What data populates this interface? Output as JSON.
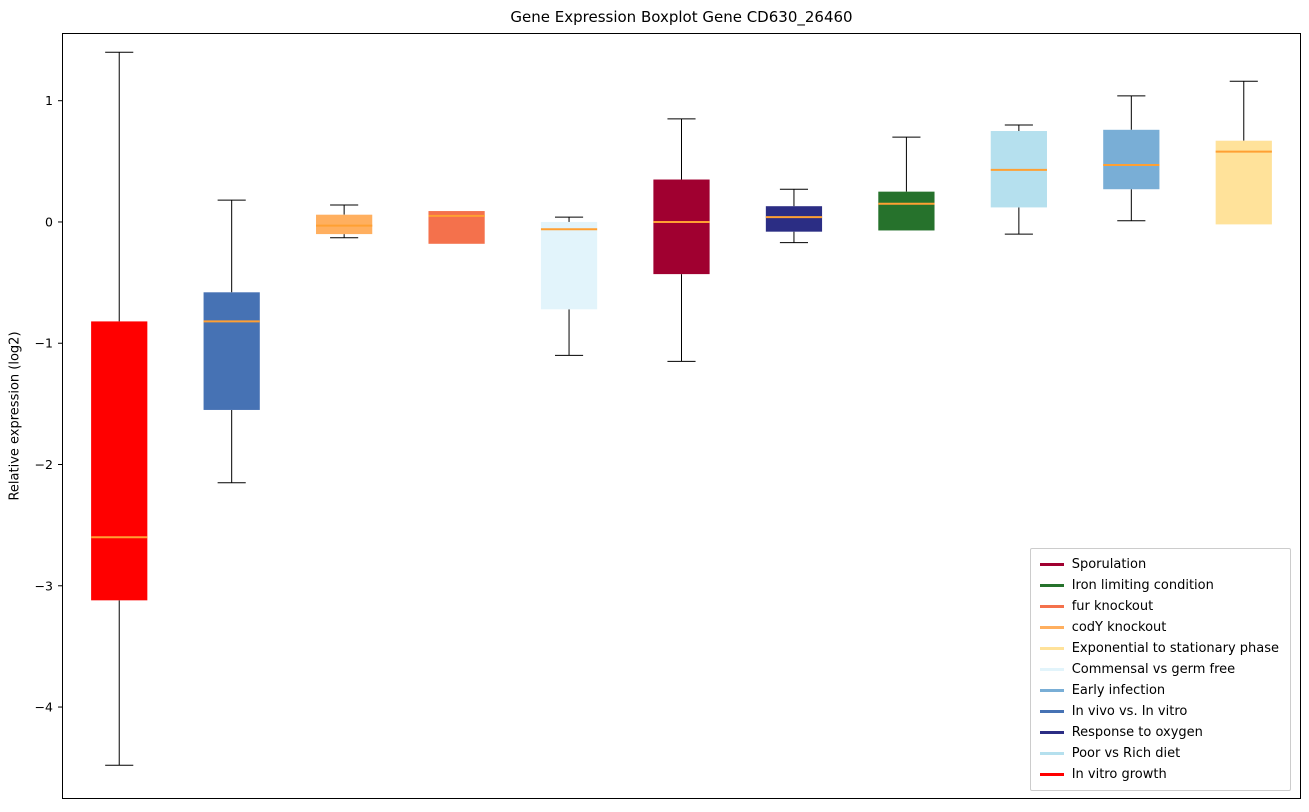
{
  "chart_data": {
    "type": "boxplot",
    "title": "Gene Expression Boxplot Gene CD630_26460",
    "ylabel": "Relative expression (log2)",
    "ylim": [
      -4.75,
      1.55
    ],
    "yticks": [
      1,
      0,
      -1,
      -2,
      -3,
      -4
    ],
    "ytick_labels": [
      "1",
      "0",
      "−1",
      "−2",
      "−3",
      "−4"
    ],
    "grid": false,
    "median_color": "#ffa033",
    "whisker_color": "#000000",
    "boxes": [
      {
        "name": "In vitro growth",
        "color": "#ff0000",
        "whisker_low": -4.48,
        "q1": -3.12,
        "median": -2.6,
        "q3": -0.82,
        "whisker_high": 1.4
      },
      {
        "name": "In vivo vs. In vitro",
        "color": "#4672b4",
        "whisker_low": -2.15,
        "q1": -1.55,
        "median": -0.82,
        "q3": -0.58,
        "whisker_high": 0.18
      },
      {
        "name": "codY knockout",
        "color": "#ffaf5f",
        "whisker_low": -0.13,
        "q1": -0.1,
        "median": -0.03,
        "q3": 0.06,
        "whisker_high": 0.14
      },
      {
        "name": "fur knockout",
        "color": "#f4714c",
        "whisker_low": -0.18,
        "q1": -0.18,
        "median": 0.05,
        "q3": 0.09,
        "whisker_high": 0.09
      },
      {
        "name": "Commensal vs germ free",
        "color": "#e2f4fb",
        "whisker_low": -1.1,
        "q1": -0.72,
        "median": -0.06,
        "q3": 0.0,
        "whisker_high": 0.04
      },
      {
        "name": "Sporulation",
        "color": "#a00030",
        "whisker_low": -1.15,
        "q1": -0.43,
        "median": 0.0,
        "q3": 0.35,
        "whisker_high": 0.85
      },
      {
        "name": "Response to oxygen",
        "color": "#2b2d84",
        "whisker_low": -0.17,
        "q1": -0.08,
        "median": 0.04,
        "q3": 0.13,
        "whisker_high": 0.27
      },
      {
        "name": "Iron limiting condition",
        "color": "#26722c",
        "whisker_low": -0.07,
        "q1": -0.07,
        "median": 0.15,
        "q3": 0.25,
        "whisker_high": 0.7
      },
      {
        "name": "Poor vs Rich diet",
        "color": "#b5e0ee",
        "whisker_low": -0.1,
        "q1": 0.12,
        "median": 0.43,
        "q3": 0.75,
        "whisker_high": 0.8
      },
      {
        "name": "Early infection",
        "color": "#79aed6",
        "whisker_low": 0.01,
        "q1": 0.27,
        "median": 0.47,
        "q3": 0.76,
        "whisker_high": 1.04
      },
      {
        "name": "Exponential to stationary phase",
        "color": "#ffe29a",
        "whisker_low": -0.02,
        "q1": -0.02,
        "median": 0.58,
        "q3": 0.67,
        "whisker_high": 1.16
      }
    ],
    "legend": {
      "position": "lower right",
      "items": [
        {
          "label": "Sporulation",
          "color": "#a00030"
        },
        {
          "label": "Iron limiting condition",
          "color": "#26722c"
        },
        {
          "label": "fur knockout",
          "color": "#f4714c"
        },
        {
          "label": "codY knockout",
          "color": "#ffaf5f"
        },
        {
          "label": "Exponential to stationary phase",
          "color": "#ffe29a"
        },
        {
          "label": "Commensal vs germ free",
          "color": "#e2f4fb"
        },
        {
          "label": "Early infection",
          "color": "#79aed6"
        },
        {
          "label": "In vivo vs. In vitro",
          "color": "#4672b4"
        },
        {
          "label": "Response to oxygen",
          "color": "#2b2d84"
        },
        {
          "label": "Poor vs Rich diet",
          "color": "#b5e0ee"
        },
        {
          "label": "In vitro growth",
          "color": "#ff0000"
        }
      ]
    }
  }
}
